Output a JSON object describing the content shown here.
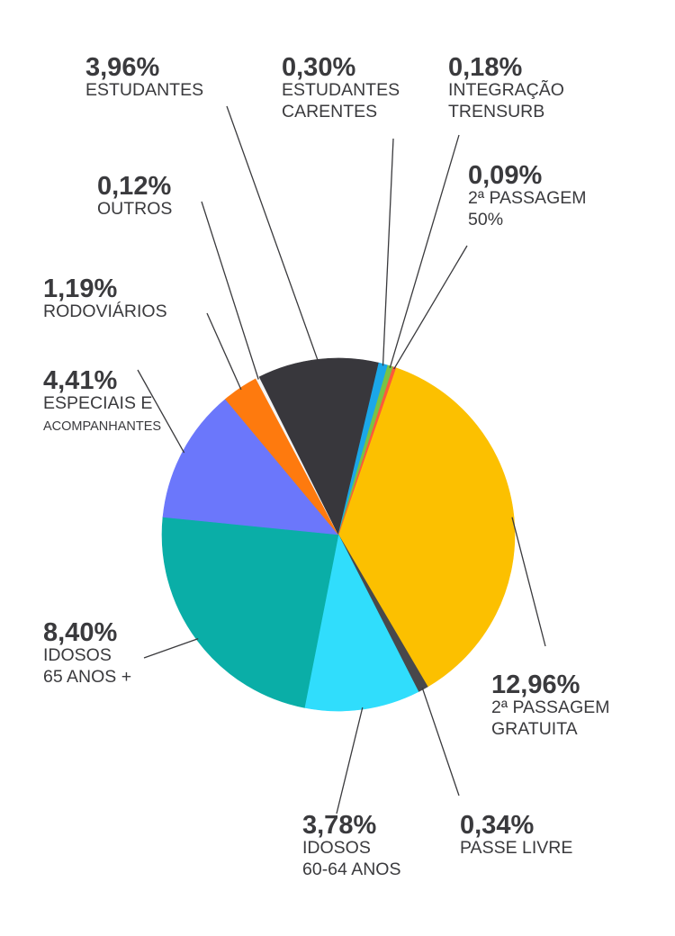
{
  "chart_data": {
    "type": "pie",
    "slices": [
      {
        "value": 12.96,
        "pct_label": "12,96%",
        "label_lines": [
          "2ª PASSAGEM",
          "GRATUITA"
        ],
        "color": "#fcc000"
      },
      {
        "value": 0.34,
        "pct_label": "0,34%",
        "label_lines": [
          "PASSE LIVRE"
        ],
        "color": "#48484b"
      },
      {
        "value": 3.78,
        "pct_label": "3,78%",
        "label_lines": [
          "IDOSOS",
          "60-64 ANOS"
        ],
        "color": "#30ddfc"
      },
      {
        "value": 8.4,
        "pct_label": "8,40%",
        "label_lines": [
          "IDOSOS",
          "65 ANOS +"
        ],
        "color": "#0aaea7"
      },
      {
        "value": 4.41,
        "pct_label": "4,41%",
        "label_lines": [
          "ESPECIAIS E",
          "ACOMPANHANTES"
        ],
        "color": "#6b77fb"
      },
      {
        "value": 1.19,
        "pct_label": "1,19%",
        "label_lines": [
          "RODOVIÁRIOS"
        ],
        "color": "#fe7a0e"
      },
      {
        "value": 0.12,
        "pct_label": "0,12%",
        "label_lines": [
          "OUTROS"
        ],
        "color": "#f5f5f5"
      },
      {
        "value": 3.96,
        "pct_label": "3,96%",
        "label_lines": [
          "ESTUDANTES"
        ],
        "color": "#38373c"
      },
      {
        "value": 0.3,
        "pct_label": "0,30%",
        "label_lines": [
          "ESTUDANTES",
          "CARENTES"
        ],
        "color": "#1ba7e8"
      },
      {
        "value": 0.18,
        "pct_label": "0,18%",
        "label_lines": [
          "INTEGRAÇÃO",
          "TRENSURB"
        ],
        "color": "#79c244"
      },
      {
        "value": 0.09,
        "pct_label": "0,09%",
        "label_lines": [
          "2ª PASSAGEM",
          "50%"
        ],
        "color": "#fe5a3a"
      }
    ]
  }
}
